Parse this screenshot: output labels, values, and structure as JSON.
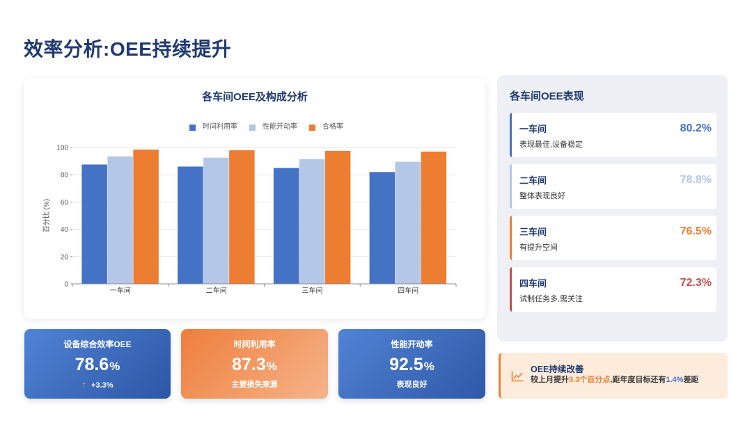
{
  "slide": {
    "title": "效率分析:OEE持续提升"
  },
  "chart_data": {
    "type": "bar",
    "title": "各车间OEE及构成分析",
    "categories": [
      "一车间",
      "二车间",
      "三车间",
      "四车间"
    ],
    "series": [
      {
        "name": "时间利用率",
        "color": "#4472C4",
        "values": [
          87.5,
          86,
          85,
          82
        ]
      },
      {
        "name": "性能开动率",
        "color": "#B4C7E7",
        "values": [
          93.5,
          92.5,
          91.5,
          89.5
        ]
      },
      {
        "name": "合格率",
        "color": "#ED7D31",
        "values": [
          98.5,
          98,
          97.5,
          97
        ]
      }
    ],
    "xlabel": "",
    "ylabel": "百分比 (%)",
    "ylim": [
      0,
      100
    ],
    "yticks": [
      0,
      20,
      40,
      60,
      80,
      100
    ],
    "grid": true,
    "legend": "top-center"
  },
  "kpis": [
    {
      "label": "设备综合效率OEE",
      "value": "78.6",
      "unit": "%",
      "trend_icon": "arrow-up-icon",
      "trend_arrow": "↑",
      "note": "+3.3%"
    },
    {
      "label": "时间利用率",
      "value": "87.3",
      "unit": "%",
      "note": "主要损失来源"
    },
    {
      "label": "性能开动率",
      "value": "92.5",
      "unit": "%",
      "note": "表现良好"
    }
  ],
  "panel": {
    "title": "各车间OEE表现",
    "items": [
      {
        "name": "一车间",
        "value": "80.2%",
        "desc": "表现最佳,设备稳定",
        "color": "#4472C4"
      },
      {
        "name": "二车间",
        "value": "78.8%",
        "desc": "整体表现良好",
        "color": "#B4C7E7"
      },
      {
        "name": "三车间",
        "value": "76.5%",
        "desc": "有提升空间",
        "color": "#ED7D31"
      },
      {
        "name": "四车间",
        "value": "72.3%",
        "desc": "试制任务多,需关注",
        "color": "#C0504D"
      }
    ]
  },
  "callout": {
    "icon": "trend-chart-icon",
    "title": "OEE持续改善",
    "text_before": "较上月提升",
    "highlight_1": "3.3个百分点",
    "text_middle": ",距年度目标还有",
    "highlight_2": "1.4%",
    "text_after": "差距"
  },
  "colors": {
    "title_navy": "#1F3A70",
    "accent_blue": "#4472C4",
    "accent_orange": "#ED7D31"
  }
}
